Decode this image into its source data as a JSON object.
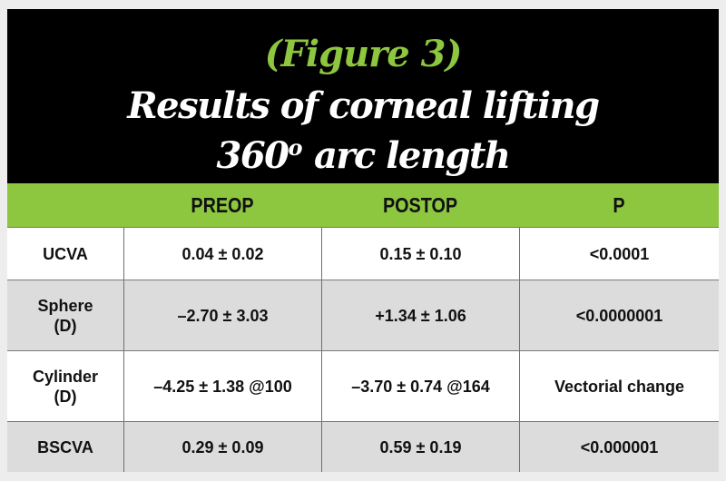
{
  "header": {
    "figure_label": "(Figure 3)",
    "title_line1": "Results of corneal lifting",
    "title_line2_main": "360",
    "title_line2_sup": "o",
    "title_line2_rest": " arc length"
  },
  "table": {
    "columns": [
      "",
      "PREOP",
      "POSTOP",
      "P"
    ],
    "rows": [
      {
        "label": "UCVA",
        "sublabel": "",
        "preop": "0.04 ± 0.02",
        "postop": "0.15 ± 0.10",
        "p": "<0.0001"
      },
      {
        "label": "Sphere",
        "sublabel": "(D)",
        "preop": "–2.70 ± 3.03",
        "postop": "+1.34 ± 1.06",
        "p": "<0.0000001"
      },
      {
        "label": "Cylinder",
        "sublabel": "(D)",
        "preop": "–4.25 ± 1.38 @100",
        "postop": "–3.70 ± 0.74 @164",
        "p": "Vectorial change"
      },
      {
        "label": "BSCVA",
        "sublabel": "",
        "preop": "0.29 ± 0.09",
        "postop": "0.59 ± 0.19",
        "p": "<0.000001"
      }
    ]
  },
  "colors": {
    "accent_green": "#8dc63f",
    "header_bg": "#000000",
    "row_alt_bg": "#dcdcdc"
  }
}
